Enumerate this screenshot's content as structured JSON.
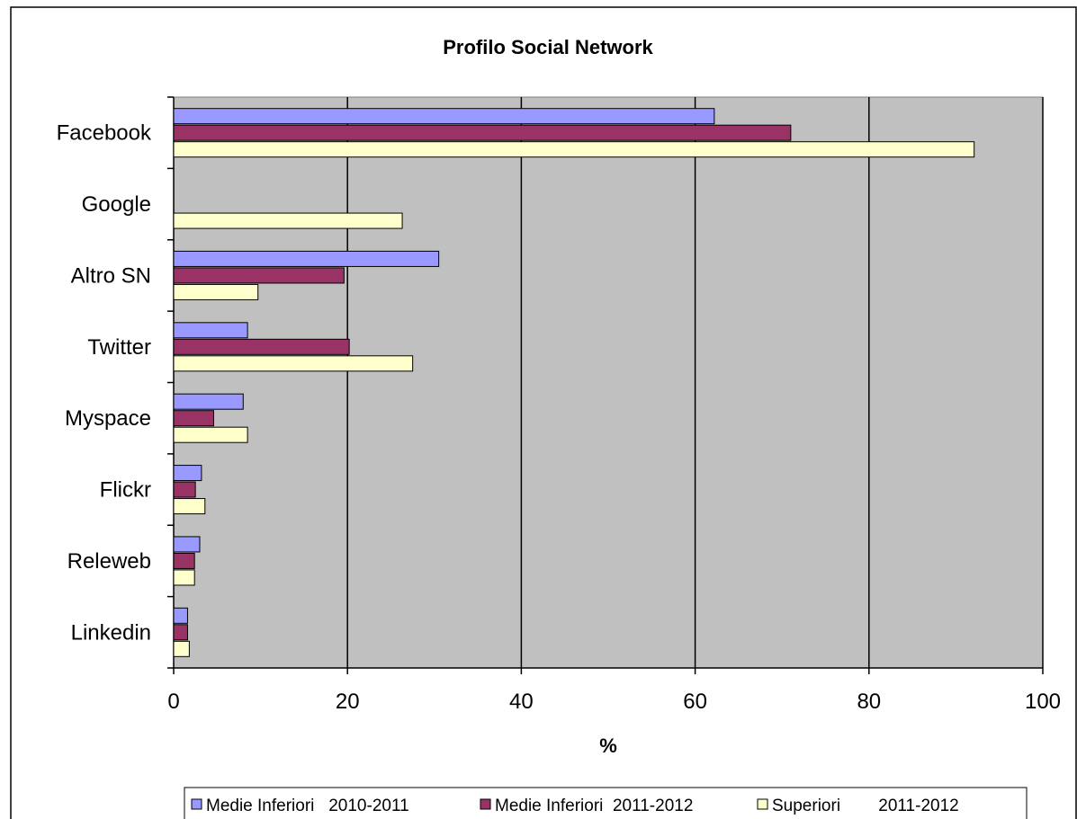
{
  "chart_data": {
    "type": "bar",
    "orientation": "horizontal",
    "title": "Profilo Social Network",
    "xlabel": "%",
    "ylabel": "",
    "xlim": [
      0,
      100
    ],
    "x_ticks": [
      0,
      20,
      40,
      60,
      80,
      100
    ],
    "categories": [
      "Facebook",
      "Google",
      "Altro SN",
      "Twitter",
      "Myspace",
      "Flickr",
      "Releweb",
      "Linkedin"
    ],
    "series": [
      {
        "name": "Medie Inferiori   2010-2011",
        "color": "#9999ff",
        "values": [
          62.2,
          0,
          30.5,
          8.5,
          8.0,
          3.2,
          3.0,
          1.6
        ]
      },
      {
        "name": "Medie Inferiori  2011-2012",
        "color": "#993366",
        "values": [
          71.0,
          0,
          19.6,
          20.2,
          4.6,
          2.5,
          2.4,
          1.6
        ]
      },
      {
        "name": "Superiori        2011-2012",
        "color": "#ffffcc",
        "values": [
          92.1,
          26.3,
          9.7,
          27.5,
          8.5,
          3.6,
          2.4,
          1.8
        ]
      }
    ],
    "grid": true,
    "plot_background": "#c0c0c0",
    "legend_position": "bottom"
  }
}
